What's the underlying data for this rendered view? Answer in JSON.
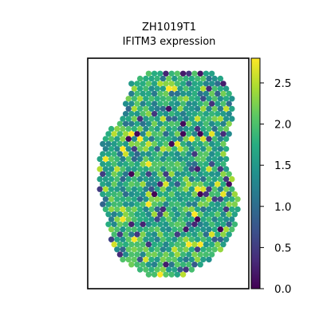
{
  "chart_data": {
    "type": "scatter",
    "title": "ZH1019T1",
    "subtitle": "IFITM3 expression",
    "xlabel": "",
    "ylabel": "",
    "colorbar": {
      "colormap": "viridis",
      "range": [
        0.0,
        2.8
      ],
      "ticks": [
        "0.0",
        "0.5",
        "1.0",
        "1.5",
        "2.0",
        "2.5"
      ],
      "tick_values": [
        0.0,
        0.5,
        1.0,
        1.5,
        2.0,
        2.5
      ]
    },
    "grid": false,
    "axes_ticks": false,
    "points": {
      "shape": "hexagonal spot grid (tissue outline)",
      "value_mean": 1.75,
      "value_sd": 0.45,
      "value_min": 0.0,
      "value_max": 2.8,
      "note": "individual spot values are not legible; values follow the colormap"
    },
    "colors": {
      "viridis_low": "#440154",
      "viridis_high": "#fde725"
    }
  }
}
